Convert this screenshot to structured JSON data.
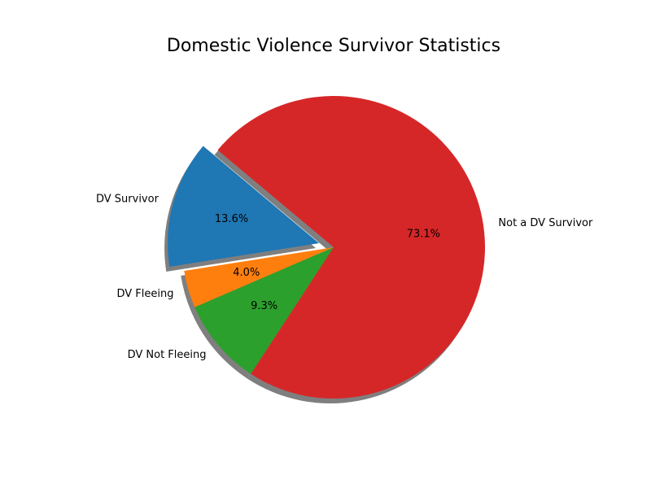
{
  "chart_data": {
    "type": "pie",
    "title": "Domestic Violence Survivor Statistics",
    "slices": [
      {
        "label": "DV Survivor",
        "value": 13.6,
        "pct_label": "13.6%",
        "color": "#1f77b4",
        "exploded": true
      },
      {
        "label": "DV Fleeing",
        "value": 4.0,
        "pct_label": "4.0%",
        "color": "#ff7f0e",
        "exploded": false
      },
      {
        "label": "DV Not Fleeing",
        "value": 9.3,
        "pct_label": "9.3%",
        "color": "#2ca02c",
        "exploded": false
      },
      {
        "label": "Not a DV Survivor",
        "value": 73.1,
        "pct_label": "73.1%",
        "color": "#d62728",
        "exploded": false
      }
    ],
    "shadow": true,
    "start_angle_deg": 140,
    "direction": "counterclockwise"
  }
}
